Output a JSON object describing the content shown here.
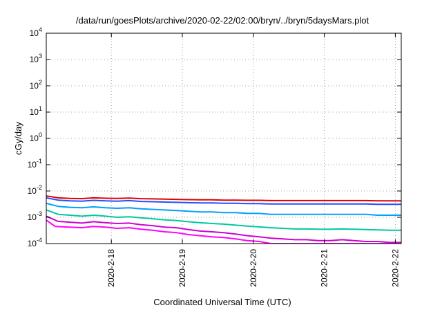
{
  "chart_data": {
    "type": "line",
    "title": "/data/run/goesPlots/archive/2020-02-22/02:00/bryn/../bryn/5daysMars.plot",
    "xlabel": "Coordinated Universal Time (UTC)",
    "ylabel": "cGy/day",
    "x_range": [
      "2020-02-17 02:00",
      "2020-02-22 02:00"
    ],
    "y_range": [
      0.0001,
      10000
    ],
    "y_scale": "log",
    "grid": true,
    "legend": "none",
    "x_ticks": [
      {
        "label": "2020-2-18",
        "value": "2020-02-18 00:00"
      },
      {
        "label": "2020-2-19",
        "value": "2020-02-19 00:00"
      },
      {
        "label": "2020-2-20",
        "value": "2020-02-20 00:00"
      },
      {
        "label": "2020-2-21",
        "value": "2020-02-21 00:00"
      },
      {
        "label": "2020-2-22",
        "value": "2020-02-22 00:00"
      }
    ],
    "y_ticks": [
      {
        "base": "10",
        "exp": "4",
        "value": 10000
      },
      {
        "base": "10",
        "exp": "3",
        "value": 1000
      },
      {
        "base": "10",
        "exp": "2",
        "value": 100
      },
      {
        "base": "10",
        "exp": "1",
        "value": 10
      },
      {
        "base": "10",
        "exp": "0",
        "value": 1
      },
      {
        "base": "10",
        "exp": "-1",
        "value": 0.1
      },
      {
        "base": "10",
        "exp": "-2",
        "value": 0.01
      },
      {
        "base": "10",
        "exp": "-3",
        "value": 0.001
      },
      {
        "base": "10",
        "exp": "-4",
        "value": 0.0001
      }
    ],
    "series": [
      {
        "color": "#ff00ff",
        "values": [
          {
            "x": "2020-02-17 02:00",
            "y": 0.00078
          },
          {
            "x": "2020-02-17 05:00",
            "y": 0.00045
          },
          {
            "x": "2020-02-17 10:00",
            "y": 0.00042
          },
          {
            "x": "2020-02-17 14:00",
            "y": 0.0004
          },
          {
            "x": "2020-02-17 18:00",
            "y": 0.00045
          },
          {
            "x": "2020-02-17 22:00",
            "y": 0.00042
          },
          {
            "x": "2020-02-18 02:00",
            "y": 0.00038
          },
          {
            "x": "2020-02-18 06:00",
            "y": 0.0004
          },
          {
            "x": "2020-02-18 10:00",
            "y": 0.00035
          },
          {
            "x": "2020-02-18 14:00",
            "y": 0.00032
          },
          {
            "x": "2020-02-18 18:00",
            "y": 0.00028
          },
          {
            "x": "2020-02-18 22:00",
            "y": 0.00026
          },
          {
            "x": "2020-02-19 02:00",
            "y": 0.00022
          },
          {
            "x": "2020-02-19 06:00",
            "y": 0.0002
          },
          {
            "x": "2020-02-19 10:00",
            "y": 0.00018
          },
          {
            "x": "2020-02-19 14:00",
            "y": 0.00017
          },
          {
            "x": "2020-02-19 18:00",
            "y": 0.00015
          },
          {
            "x": "2020-02-19 22:00",
            "y": 0.00013
          },
          {
            "x": "2020-02-20 02:00",
            "y": 0.00012
          },
          {
            "x": "2020-02-20 06:00",
            "y": 0.0001
          },
          {
            "x": "2020-02-20 10:00",
            "y": 0.0001
          },
          {
            "x": "2020-02-20 14:00",
            "y": 0.0001
          },
          {
            "x": "2020-02-20 18:00",
            "y": 0.0001
          },
          {
            "x": "2020-02-20 22:00",
            "y": 0.0001
          },
          {
            "x": "2020-02-21 02:00",
            "y": 0.0001
          },
          {
            "x": "2020-02-21 06:00",
            "y": 0.0001
          },
          {
            "x": "2020-02-21 10:00",
            "y": 0.0001
          },
          {
            "x": "2020-02-21 14:00",
            "y": 0.0001
          },
          {
            "x": "2020-02-21 18:00",
            "y": 0.0001
          },
          {
            "x": "2020-02-21 22:00",
            "y": 0.0001
          },
          {
            "x": "2020-02-22 02:00",
            "y": 0.0001
          }
        ]
      },
      {
        "color": "#d000d0",
        "values": [
          {
            "x": "2020-02-17 02:00",
            "y": 0.0011
          },
          {
            "x": "2020-02-17 06:00",
            "y": 0.0007
          },
          {
            "x": "2020-02-17 10:00",
            "y": 0.00065
          },
          {
            "x": "2020-02-17 14:00",
            "y": 0.0006
          },
          {
            "x": "2020-02-17 18:00",
            "y": 0.00068
          },
          {
            "x": "2020-02-17 22:00",
            "y": 0.00062
          },
          {
            "x": "2020-02-18 02:00",
            "y": 0.00058
          },
          {
            "x": "2020-02-18 06:00",
            "y": 0.0006
          },
          {
            "x": "2020-02-18 10:00",
            "y": 0.00052
          },
          {
            "x": "2020-02-18 14:00",
            "y": 0.00048
          },
          {
            "x": "2020-02-18 18:00",
            "y": 0.00042
          },
          {
            "x": "2020-02-18 22:00",
            "y": 0.0004
          },
          {
            "x": "2020-02-19 02:00",
            "y": 0.00034
          },
          {
            "x": "2020-02-19 06:00",
            "y": 0.0003
          },
          {
            "x": "2020-02-19 10:00",
            "y": 0.00028
          },
          {
            "x": "2020-02-19 14:00",
            "y": 0.00026
          },
          {
            "x": "2020-02-19 18:00",
            "y": 0.00023
          },
          {
            "x": "2020-02-19 22:00",
            "y": 0.0002
          },
          {
            "x": "2020-02-20 02:00",
            "y": 0.00018
          },
          {
            "x": "2020-02-20 06:00",
            "y": 0.00016
          },
          {
            "x": "2020-02-20 10:00",
            "y": 0.00015
          },
          {
            "x": "2020-02-20 14:00",
            "y": 0.00014
          },
          {
            "x": "2020-02-20 18:00",
            "y": 0.00014
          },
          {
            "x": "2020-02-20 22:00",
            "y": 0.00013
          },
          {
            "x": "2020-02-21 02:00",
            "y": 0.00013
          },
          {
            "x": "2020-02-21 06:00",
            "y": 0.00014
          },
          {
            "x": "2020-02-21 10:00",
            "y": 0.00013
          },
          {
            "x": "2020-02-21 14:00",
            "y": 0.00012
          },
          {
            "x": "2020-02-21 18:00",
            "y": 0.00012
          },
          {
            "x": "2020-02-21 22:00",
            "y": 0.00011
          },
          {
            "x": "2020-02-22 02:00",
            "y": 0.00011
          }
        ]
      },
      {
        "color": "#00c8a0",
        "values": [
          {
            "x": "2020-02-17 02:00",
            "y": 0.0019
          },
          {
            "x": "2020-02-17 06:00",
            "y": 0.0013
          },
          {
            "x": "2020-02-17 10:00",
            "y": 0.0012
          },
          {
            "x": "2020-02-17 14:00",
            "y": 0.0011
          },
          {
            "x": "2020-02-17 18:00",
            "y": 0.0012
          },
          {
            "x": "2020-02-17 22:00",
            "y": 0.0011
          },
          {
            "x": "2020-02-18 02:00",
            "y": 0.001
          },
          {
            "x": "2020-02-18 06:00",
            "y": 0.00105
          },
          {
            "x": "2020-02-18 10:00",
            "y": 0.00095
          },
          {
            "x": "2020-02-18 14:00",
            "y": 0.00088
          },
          {
            "x": "2020-02-18 18:00",
            "y": 0.0008
          },
          {
            "x": "2020-02-18 22:00",
            "y": 0.00075
          },
          {
            "x": "2020-02-19 02:00",
            "y": 0.00068
          },
          {
            "x": "2020-02-19 06:00",
            "y": 0.00062
          },
          {
            "x": "2020-02-19 10:00",
            "y": 0.00058
          },
          {
            "x": "2020-02-19 14:00",
            "y": 0.00055
          },
          {
            "x": "2020-02-19 18:00",
            "y": 0.0005
          },
          {
            "x": "2020-02-19 22:00",
            "y": 0.00046
          },
          {
            "x": "2020-02-20 02:00",
            "y": 0.00043
          },
          {
            "x": "2020-02-20 06:00",
            "y": 0.0004
          },
          {
            "x": "2020-02-20 10:00",
            "y": 0.00038
          },
          {
            "x": "2020-02-20 14:00",
            "y": 0.00036
          },
          {
            "x": "2020-02-20 18:00",
            "y": 0.00036
          },
          {
            "x": "2020-02-20 22:00",
            "y": 0.00035
          },
          {
            "x": "2020-02-21 02:00",
            "y": 0.00035
          },
          {
            "x": "2020-02-21 06:00",
            "y": 0.00036
          },
          {
            "x": "2020-02-21 10:00",
            "y": 0.00035
          },
          {
            "x": "2020-02-21 14:00",
            "y": 0.00034
          },
          {
            "x": "2020-02-21 18:00",
            "y": 0.00033
          },
          {
            "x": "2020-02-21 22:00",
            "y": 0.00032
          },
          {
            "x": "2020-02-22 02:00",
            "y": 0.00032
          }
        ]
      },
      {
        "color": "#00a0ff",
        "values": [
          {
            "x": "2020-02-17 02:00",
            "y": 0.0034
          },
          {
            "x": "2020-02-17 06:00",
            "y": 0.0026
          },
          {
            "x": "2020-02-17 10:00",
            "y": 0.0024
          },
          {
            "x": "2020-02-17 14:00",
            "y": 0.0023
          },
          {
            "x": "2020-02-17 18:00",
            "y": 0.0025
          },
          {
            "x": "2020-02-17 22:00",
            "y": 0.0023
          },
          {
            "x": "2020-02-18 02:00",
            "y": 0.0022
          },
          {
            "x": "2020-02-18 06:00",
            "y": 0.0023
          },
          {
            "x": "2020-02-18 10:00",
            "y": 0.0021
          },
          {
            "x": "2020-02-18 14:00",
            "y": 0.002
          },
          {
            "x": "2020-02-18 18:00",
            "y": 0.0019
          },
          {
            "x": "2020-02-18 22:00",
            "y": 0.0018
          },
          {
            "x": "2020-02-19 02:00",
            "y": 0.0017
          },
          {
            "x": "2020-02-19 06:00",
            "y": 0.0016
          },
          {
            "x": "2020-02-19 10:00",
            "y": 0.0016
          },
          {
            "x": "2020-02-19 14:00",
            "y": 0.0015
          },
          {
            "x": "2020-02-19 18:00",
            "y": 0.0015
          },
          {
            "x": "2020-02-19 22:00",
            "y": 0.0014
          },
          {
            "x": "2020-02-20 02:00",
            "y": 0.0014
          },
          {
            "x": "2020-02-20 06:00",
            "y": 0.0013
          },
          {
            "x": "2020-02-20 10:00",
            "y": 0.0013
          },
          {
            "x": "2020-02-20 14:00",
            "y": 0.0013
          },
          {
            "x": "2020-02-20 18:00",
            "y": 0.0013
          },
          {
            "x": "2020-02-20 22:00",
            "y": 0.0013
          },
          {
            "x": "2020-02-21 02:00",
            "y": 0.0013
          },
          {
            "x": "2020-02-21 06:00",
            "y": 0.0013
          },
          {
            "x": "2020-02-21 10:00",
            "y": 0.0013
          },
          {
            "x": "2020-02-21 14:00",
            "y": 0.0013
          },
          {
            "x": "2020-02-21 18:00",
            "y": 0.0012
          },
          {
            "x": "2020-02-21 22:00",
            "y": 0.0012
          },
          {
            "x": "2020-02-22 02:00",
            "y": 0.0012
          }
        ]
      },
      {
        "color": "#2050ff",
        "values": [
          {
            "x": "2020-02-17 02:00",
            "y": 0.0055
          },
          {
            "x": "2020-02-17 06:00",
            "y": 0.0045
          },
          {
            "x": "2020-02-17 10:00",
            "y": 0.0042
          },
          {
            "x": "2020-02-17 14:00",
            "y": 0.0041
          },
          {
            "x": "2020-02-17 18:00",
            "y": 0.0044
          },
          {
            "x": "2020-02-17 22:00",
            "y": 0.0042
          },
          {
            "x": "2020-02-18 02:00",
            "y": 0.0041
          },
          {
            "x": "2020-02-18 06:00",
            "y": 0.0043
          },
          {
            "x": "2020-02-18 10:00",
            "y": 0.004
          },
          {
            "x": "2020-02-18 14:00",
            "y": 0.0039
          },
          {
            "x": "2020-02-18 18:00",
            "y": 0.0038
          },
          {
            "x": "2020-02-18 22:00",
            "y": 0.0037
          },
          {
            "x": "2020-02-19 02:00",
            "y": 0.0036
          },
          {
            "x": "2020-02-19 06:00",
            "y": 0.0035
          },
          {
            "x": "2020-02-19 10:00",
            "y": 0.0035
          },
          {
            "x": "2020-02-19 14:00",
            "y": 0.0034
          },
          {
            "x": "2020-02-19 18:00",
            "y": 0.0034
          },
          {
            "x": "2020-02-19 22:00",
            "y": 0.0033
          },
          {
            "x": "2020-02-20 02:00",
            "y": 0.0033
          },
          {
            "x": "2020-02-20 06:00",
            "y": 0.0032
          },
          {
            "x": "2020-02-20 10:00",
            "y": 0.0032
          },
          {
            "x": "2020-02-20 14:00",
            "y": 0.0032
          },
          {
            "x": "2020-02-20 18:00",
            "y": 0.0032
          },
          {
            "x": "2020-02-20 22:00",
            "y": 0.0032
          },
          {
            "x": "2020-02-21 02:00",
            "y": 0.0032
          },
          {
            "x": "2020-02-21 06:00",
            "y": 0.0032
          },
          {
            "x": "2020-02-21 10:00",
            "y": 0.0032
          },
          {
            "x": "2020-02-21 14:00",
            "y": 0.0032
          },
          {
            "x": "2020-02-21 18:00",
            "y": 0.0031
          },
          {
            "x": "2020-02-21 22:00",
            "y": 0.0031
          },
          {
            "x": "2020-02-22 02:00",
            "y": 0.0031
          }
        ]
      },
      {
        "color": "#e00000",
        "values": [
          {
            "x": "2020-02-17 02:00",
            "y": 0.0065
          },
          {
            "x": "2020-02-17 06:00",
            "y": 0.0055
          },
          {
            "x": "2020-02-17 10:00",
            "y": 0.0052
          },
          {
            "x": "2020-02-17 14:00",
            "y": 0.0051
          },
          {
            "x": "2020-02-17 18:00",
            "y": 0.0055
          },
          {
            "x": "2020-02-17 22:00",
            "y": 0.0053
          },
          {
            "x": "2020-02-18 02:00",
            "y": 0.0052
          },
          {
            "x": "2020-02-18 06:00",
            "y": 0.0054
          },
          {
            "x": "2020-02-18 10:00",
            "y": 0.0051
          },
          {
            "x": "2020-02-18 14:00",
            "y": 0.005
          },
          {
            "x": "2020-02-18 18:00",
            "y": 0.0049
          },
          {
            "x": "2020-02-18 22:00",
            "y": 0.0048
          },
          {
            "x": "2020-02-19 02:00",
            "y": 0.0047
          },
          {
            "x": "2020-02-19 06:00",
            "y": 0.0046
          },
          {
            "x": "2020-02-19 10:00",
            "y": 0.0046
          },
          {
            "x": "2020-02-19 14:00",
            "y": 0.0045
          },
          {
            "x": "2020-02-19 18:00",
            "y": 0.0045
          },
          {
            "x": "2020-02-19 22:00",
            "y": 0.0044
          },
          {
            "x": "2020-02-20 02:00",
            "y": 0.0044
          },
          {
            "x": "2020-02-20 06:00",
            "y": 0.0043
          },
          {
            "x": "2020-02-20 10:00",
            "y": 0.0043
          },
          {
            "x": "2020-02-20 14:00",
            "y": 0.0043
          },
          {
            "x": "2020-02-20 18:00",
            "y": 0.0043
          },
          {
            "x": "2020-02-20 22:00",
            "y": 0.0043
          },
          {
            "x": "2020-02-21 02:00",
            "y": 0.0043
          },
          {
            "x": "2020-02-21 06:00",
            "y": 0.0043
          },
          {
            "x": "2020-02-21 10:00",
            "y": 0.0043
          },
          {
            "x": "2020-02-21 14:00",
            "y": 0.0043
          },
          {
            "x": "2020-02-21 18:00",
            "y": 0.0042
          },
          {
            "x": "2020-02-21 22:00",
            "y": 0.0042
          },
          {
            "x": "2020-02-22 02:00",
            "y": 0.0042
          }
        ]
      }
    ]
  }
}
